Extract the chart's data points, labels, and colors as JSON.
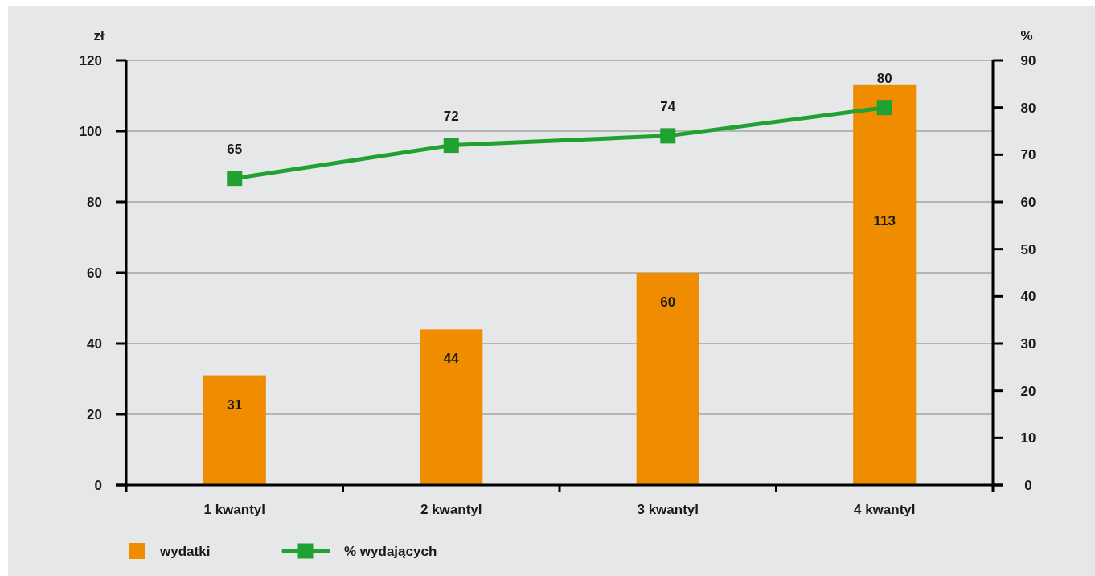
{
  "chart_data": {
    "type": "bar",
    "ylabel": "zł",
    "y2label": "%",
    "categories": [
      "1 kwantyl",
      "2 kwantyl",
      "3 kwantyl",
      "4 kwantyl"
    ],
    "series": [
      {
        "name": "wydatki",
        "color": "#f08c00",
        "values": [
          31,
          44,
          60,
          113
        ]
      },
      {
        "name": "% wydających",
        "type": "line",
        "axis": "y2",
        "color": "#22a133",
        "values": [
          65,
          72,
          74,
          80
        ]
      }
    ],
    "ylim": [
      0,
      120
    ],
    "yticks": [
      0,
      20,
      40,
      60,
      80,
      100,
      120
    ],
    "y2lim": [
      0,
      90
    ],
    "y2ticks": [
      0,
      10,
      20,
      30,
      40,
      50,
      60,
      70,
      80,
      90
    ],
    "grid": "y",
    "legend": "bottom",
    "data_labels": true,
    "marker": "square",
    "line_style": "solid"
  }
}
